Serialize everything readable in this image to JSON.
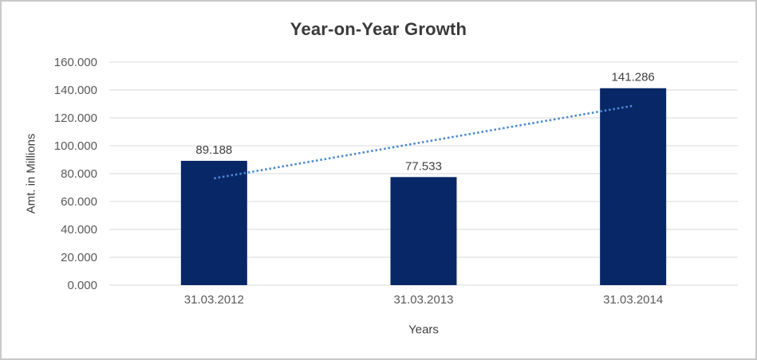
{
  "window": {
    "background": "#ffffff",
    "border_color": "#c9c9c9"
  },
  "chart_data": {
    "type": "bar",
    "title": "Year-on-Year Growth",
    "xlabel": "Years",
    "ylabel": "Amt. in Millions",
    "categories": [
      "31.03.2012",
      "31.03.2013",
      "31.03.2014"
    ],
    "values": [
      89.188,
      77.533,
      141.286
    ],
    "data_labels": [
      "89.188",
      "77.533",
      "141.286"
    ],
    "ylim": [
      0,
      160
    ],
    "ytick_step": 20,
    "ytick_values": [
      0,
      20,
      40,
      60,
      80,
      100,
      120,
      140,
      160
    ],
    "ytick_labels": [
      "0.000",
      "20.000",
      "40.000",
      "60.000",
      "80.000",
      "100.000",
      "120.000",
      "140.000",
      "160.000"
    ],
    "grid": true,
    "legend": "none",
    "trendline": {
      "type": "linear",
      "style": "dotted",
      "span": "first-to-last-category"
    },
    "colors": {
      "bar": "#082766",
      "trendline": "#4a89d4",
      "gridline": "#d9d9d9",
      "title_text": "#3a3a3a",
      "tick_text": "#595959",
      "label_text": "#404040"
    }
  }
}
